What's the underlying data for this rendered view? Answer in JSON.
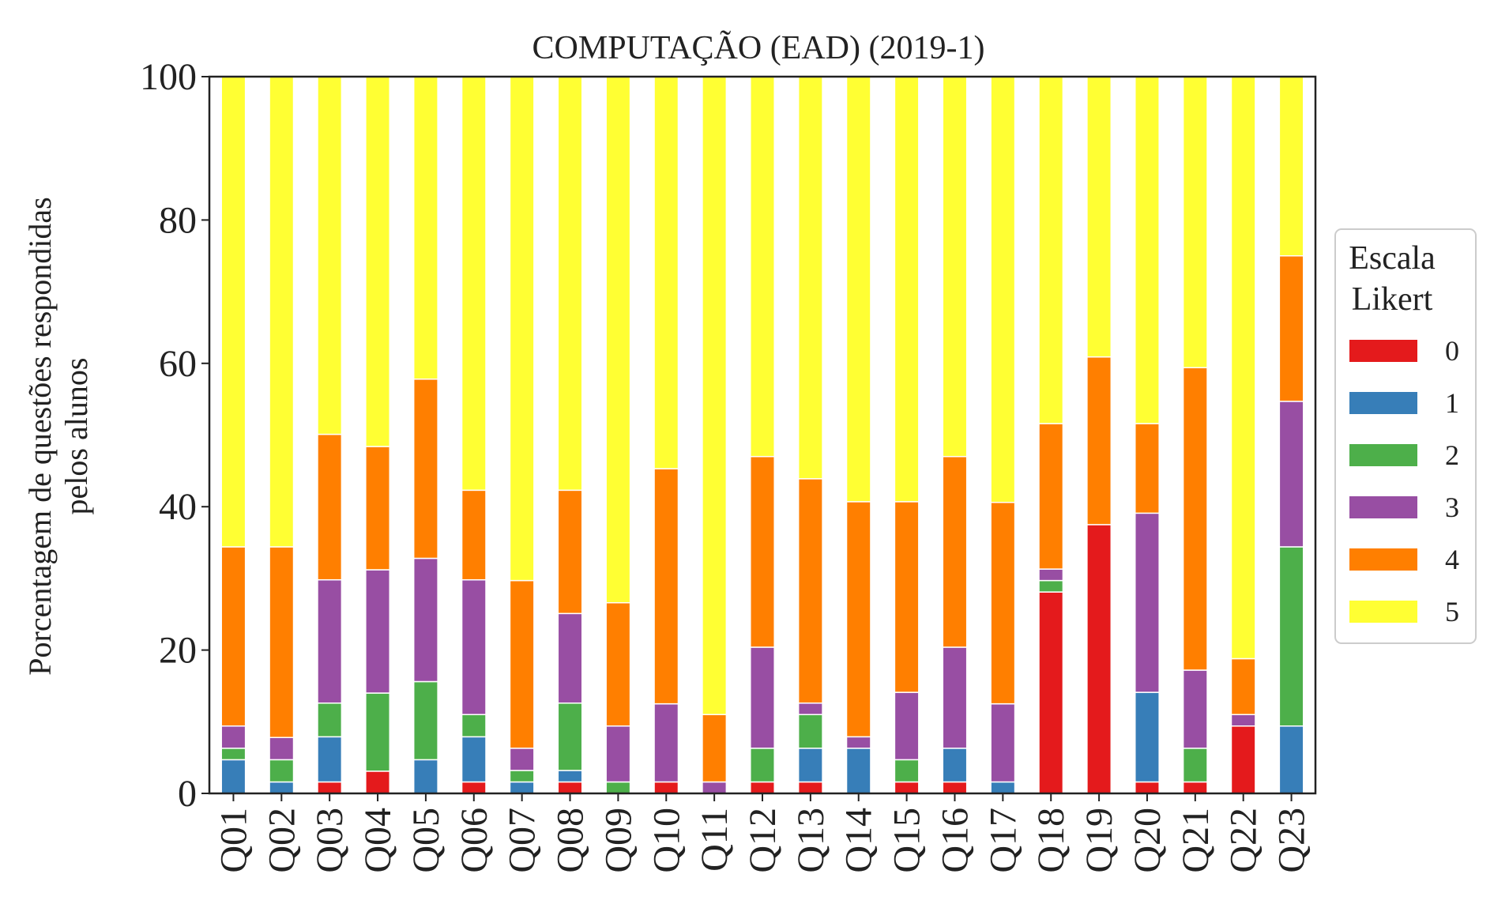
{
  "chart_data": {
    "type": "bar",
    "stacked": true,
    "title": "COMPUTAÇÃO (EAD) (2019-1)",
    "xlabel": "",
    "ylabel_lines": [
      "Porcentagem de questões respondidas",
      "pelos alunos"
    ],
    "ylim": [
      0,
      100
    ],
    "yticks": [
      0,
      20,
      40,
      60,
      80,
      100
    ],
    "grid": false,
    "legend": {
      "title_lines": [
        "Escala",
        "Likert"
      ],
      "placement": "center-right-outside"
    },
    "categories": [
      "Q01",
      "Q02",
      "Q03",
      "Q04",
      "Q05",
      "Q06",
      "Q07",
      "Q08",
      "Q09",
      "Q10",
      "Q11",
      "Q12",
      "Q13",
      "Q14",
      "Q15",
      "Q16",
      "Q17",
      "Q18",
      "Q19",
      "Q20",
      "Q21",
      "Q22",
      "Q23"
    ],
    "series": [
      {
        "name": "0",
        "color": "#e41a1c",
        "values": [
          0,
          0,
          1.6,
          3.1,
          0,
          1.6,
          0,
          1.6,
          0,
          1.6,
          0,
          1.6,
          1.6,
          0,
          1.6,
          1.6,
          0,
          28.1,
          37.5,
          1.6,
          1.6,
          9.4,
          0
        ]
      },
      {
        "name": "1",
        "color": "#377eb8",
        "values": [
          4.7,
          1.6,
          6.3,
          0,
          4.7,
          6.3,
          1.6,
          1.6,
          0,
          0,
          0,
          0,
          4.7,
          6.3,
          0,
          4.7,
          1.6,
          0,
          0,
          12.5,
          0,
          0,
          9.4
        ]
      },
      {
        "name": "2",
        "color": "#4daf4a",
        "values": [
          1.6,
          3.1,
          4.7,
          10.9,
          10.9,
          3.1,
          1.6,
          9.4,
          1.6,
          0,
          0,
          4.7,
          4.7,
          0,
          3.1,
          0,
          0,
          1.6,
          0,
          0,
          4.7,
          0,
          25.0
        ]
      },
      {
        "name": "3",
        "color": "#984ea3",
        "values": [
          3.1,
          3.1,
          17.2,
          17.2,
          17.2,
          18.8,
          3.1,
          12.5,
          7.8,
          10.9,
          1.6,
          14.1,
          1.6,
          1.6,
          9.4,
          14.1,
          10.9,
          1.6,
          0,
          25.0,
          10.9,
          1.6,
          20.3
        ]
      },
      {
        "name": "4",
        "color": "#ff7f00",
        "values": [
          25.0,
          26.6,
          20.3,
          17.2,
          25.0,
          12.5,
          23.4,
          17.2,
          17.2,
          32.8,
          9.4,
          26.6,
          31.3,
          32.8,
          26.6,
          26.6,
          28.1,
          20.3,
          23.4,
          12.5,
          42.2,
          7.8,
          20.3
        ]
      },
      {
        "name": "5",
        "color": "#ffff33",
        "values": [
          65.6,
          65.6,
          50.0,
          51.6,
          42.2,
          57.8,
          70.3,
          57.8,
          73.4,
          54.7,
          89.1,
          53.1,
          56.3,
          59.4,
          59.4,
          53.1,
          59.4,
          48.4,
          39.1,
          48.4,
          40.6,
          81.3,
          25.0
        ]
      }
    ]
  }
}
